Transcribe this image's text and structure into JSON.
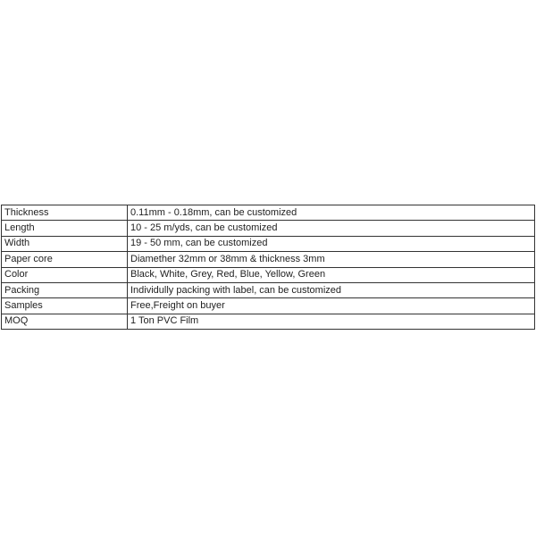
{
  "spec_table": {
    "rows": [
      {
        "label": "Thickness",
        "value": "0.11mm - 0.18mm, can be customized"
      },
      {
        "label": "Length",
        "value": "10 - 25 m/yds, can be customized"
      },
      {
        "label": "Width",
        "value": "19 - 50 mm, can be customized"
      },
      {
        "label": "Paper core",
        "value": "Diamether 32mm or 38mm & thickness 3mm"
      },
      {
        "label": "Color",
        "value": "Black, White, Grey, Red, Blue, Yellow, Green"
      },
      {
        "label": "Packing",
        "value": "Individully packing with label, can be customized"
      },
      {
        "label": "Samples",
        "value": "Free,Freight on buyer"
      },
      {
        "label": "MOQ",
        "value": "1 Ton PVC Film"
      }
    ]
  }
}
